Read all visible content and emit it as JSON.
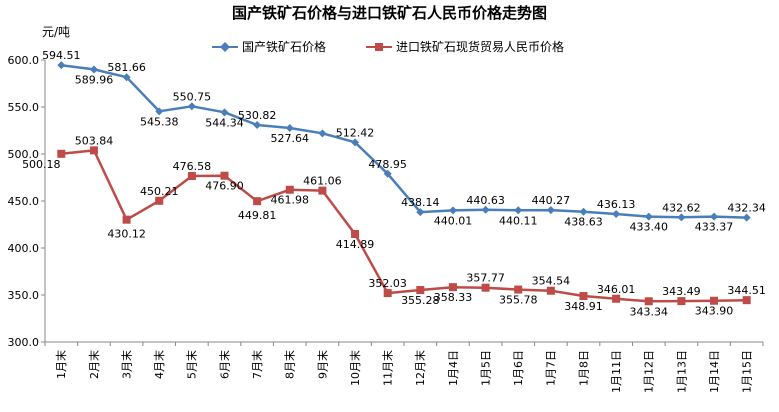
{
  "chart_data": {
    "type": "line",
    "title": "国产铁矿石价格与进口铁矿石人民币价格走势图",
    "ylabel": "元/吨",
    "xlabel": "",
    "ylim": [
      300,
      600
    ],
    "yticks": [
      "300.0",
      "350.0",
      "400.0",
      "450.0",
      "500.0",
      "550.0",
      "600.0"
    ],
    "legend_position": "top-center",
    "grid": false,
    "categories": [
      "1月末",
      "2月末",
      "3月末",
      "4月末",
      "5月末",
      "6月末",
      "7月末",
      "8月末",
      "9月末",
      "10月末",
      "11月末",
      "12月末",
      "1月4日",
      "1月5日",
      "1月6日",
      "1月7日",
      "1月8日",
      "1月11日",
      "1月12日",
      "1月13日",
      "1月14日",
      "1月15日"
    ],
    "series": [
      {
        "name": "国产铁矿石价格",
        "color": "#4A7EBB",
        "marker": "diamond",
        "values": [
          594.51,
          589.96,
          581.66,
          545.38,
          550.75,
          544.34,
          530.82,
          527.64,
          522.0,
          512.42,
          478.95,
          438.14,
          440.01,
          440.63,
          440.11,
          440.27,
          438.63,
          436.13,
          433.4,
          432.62,
          433.37,
          432.34
        ],
        "labels": [
          "594.51",
          "589.96",
          "581.66",
          "545.38",
          "550.75",
          "544.34",
          "530.82",
          "527.64",
          "",
          "512.42",
          "478.95",
          "438.14",
          "440.01",
          "440.63",
          "440.11",
          "440.27",
          "438.63",
          "436.13",
          "433.40",
          "432.62",
          "433.37",
          "432.34"
        ]
      },
      {
        "name": "进口铁矿石现货贸易人民币价格",
        "color": "#BE4B48",
        "marker": "square",
        "values": [
          500.18,
          503.84,
          430.12,
          450.21,
          476.58,
          476.9,
          449.81,
          461.98,
          461.06,
          414.89,
          352.03,
          355.28,
          358.33,
          357.77,
          355.78,
          354.54,
          348.91,
          346.01,
          343.34,
          343.49,
          343.9,
          344.51
        ],
        "labels": [
          "500.18",
          "503.84",
          "430.12",
          "450.21",
          "476.58",
          "476.90",
          "449.81",
          "461.98",
          "461.06",
          "414.89",
          "352.03",
          "355.28",
          "358.33",
          "357.77",
          "355.78",
          "354.54",
          "348.91",
          "346.01",
          "343.34",
          "343.49",
          "343.90",
          "344.51"
        ]
      }
    ]
  }
}
